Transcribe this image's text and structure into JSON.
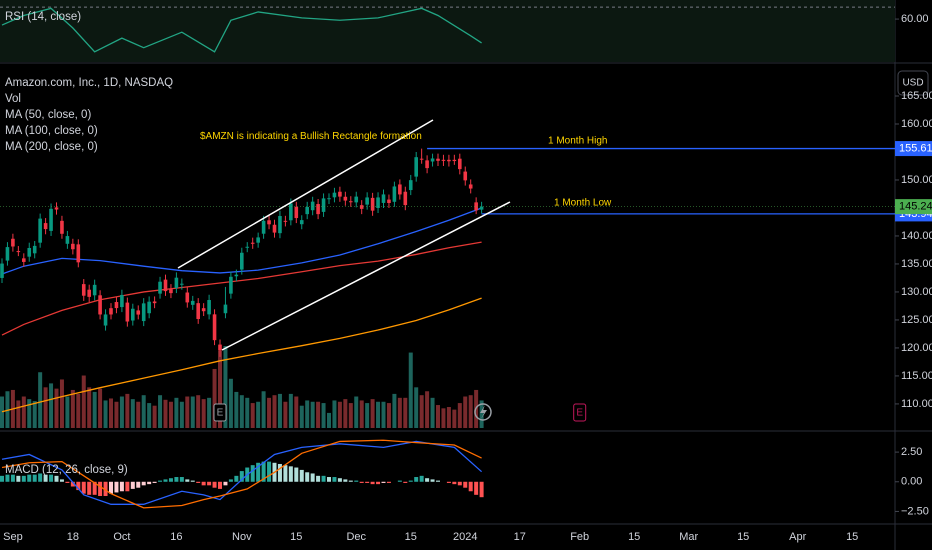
{
  "chart_data": [
    {
      "type": "line",
      "title": "RSI (14, close)",
      "ylim": [
        24,
        76
      ],
      "yticks": [
        {
          "value": 60,
          "label": "60.00"
        }
      ],
      "upper_band": 70,
      "background": "#0c1811",
      "series": [
        {
          "color": "#22a584",
          "x": [
            0,
            4,
            9,
            13,
            17,
            22,
            26,
            33,
            39,
            42,
            47,
            55,
            62,
            69,
            77,
            80,
            86,
            88
          ],
          "values": [
            55,
            63,
            69,
            52.5,
            32.5,
            44,
            36,
            49,
            32.5,
            59,
            66,
            61,
            59,
            61,
            69,
            63,
            46,
            40
          ]
        }
      ]
    },
    {
      "type": "candlestick",
      "title": "Amazon.com, Inc., 1D, NASDAQ",
      "currency": "USD",
      "up_color": "#089981",
      "down_color": "#f23645",
      "ylim": [
        105.7,
        170
      ],
      "yticks": [
        {
          "value": 110,
          "label": "110.00"
        },
        {
          "value": 115,
          "label": "115.00"
        },
        {
          "value": 120,
          "label": "120.00"
        },
        {
          "value": 125,
          "label": "125.00"
        },
        {
          "value": 130,
          "label": "130.00"
        },
        {
          "value": 135,
          "label": "135.00"
        },
        {
          "value": 140,
          "label": "140.00"
        },
        {
          "value": 150,
          "label": "150.00"
        },
        {
          "value": 160,
          "label": "160.00"
        },
        {
          "value": 165,
          "label": "165.00"
        }
      ],
      "open": [
        132.5,
        135.6,
        139.5,
        137.3,
        136.0,
        136.3,
        136.9,
        138.8,
        142.3,
        140.9,
        145.1,
        142.7,
        138.6,
        138.6,
        138.5,
        131.4,
        130.4,
        129.4,
        129.4,
        124.0,
        127.1,
        128.2,
        127.3,
        128.1,
        124.9,
        126.7,
        124.8,
        126.2,
        128.3,
        129.7,
        132.2,
        130.5,
        130.7,
        131.3,
        129.9,
        127.7,
        128.0,
        127.1,
        126.0,
        126.0,
        120.6,
        126.2,
        129.7,
        132.8,
        134.0,
        138.0,
        138.8,
        138.8,
        140.4,
        142.8,
        142.0,
        140.5,
        142.7,
        142.8,
        145.2,
        142.1,
        143.9,
        144.6,
        145.7,
        144.3,
        146.6,
        146.9,
        147.9,
        147.0,
        146.2,
        146.0,
        145.5,
        145.6,
        146.8,
        145.0,
        145.9,
        146.5,
        146.1,
        149.2,
        147.9,
        148.2,
        150.6,
        153.8,
        153.5,
        153.3,
        153.8,
        153.6,
        153.6,
        153.6,
        153.8,
        151.5,
        149.2,
        146.0,
        144.7
      ],
      "high": [
        136.0,
        138.9,
        140.4,
        138.2,
        136.9,
        138.8,
        139.1,
        144.0,
        143.2,
        145.8,
        146.0,
        143.6,
        140.9,
        139.5,
        139.4,
        132.3,
        131.3,
        132.2,
        130.3,
        126.9,
        128.0,
        129.1,
        130.4,
        129.0,
        127.9,
        127.6,
        128.9,
        129.2,
        129.2,
        132.7,
        133.1,
        131.4,
        133.5,
        132.4,
        130.8,
        129.3,
        128.9,
        128.0,
        129.5,
        126.9,
        121.5,
        130.9,
        133.6,
        134.0,
        137.9,
        138.9,
        139.7,
        140.6,
        143.6,
        143.7,
        142.9,
        144.5,
        143.6,
        146.7,
        146.1,
        143.7,
        146.1,
        147.0,
        146.6,
        147.6,
        147.6,
        148.6,
        148.8,
        147.9,
        147.1,
        147.9,
        146.4,
        147.8,
        147.7,
        147.8,
        148.3,
        147.4,
        149.7,
        150.1,
        148.8,
        150.9,
        155.0,
        155.6,
        154.4,
        154.7,
        154.7,
        154.5,
        154.5,
        154.5,
        154.7,
        152.4,
        150.1,
        146.9,
        146.1
      ],
      "low": [
        131.6,
        134.7,
        137.2,
        136.4,
        134.5,
        135.4,
        136.0,
        137.9,
        140.3,
        140.0,
        143.8,
        139.5,
        137.7,
        136.7,
        134.4,
        128.4,
        128.2,
        128.5,
        125.1,
        123.1,
        125.1,
        126.2,
        126.4,
        123.8,
        124.0,
        125.1,
        123.9,
        125.3,
        127.1,
        128.8,
        129.3,
        128.9,
        129.8,
        130.4,
        127.2,
        126.8,
        124.3,
        125.7,
        125.1,
        120.5,
        118.4,
        125.3,
        128.8,
        131.9,
        133.1,
        137.1,
        137.7,
        137.9,
        139.5,
        141.2,
        139.7,
        139.6,
        141.7,
        141.9,
        142.3,
        141.2,
        143.0,
        143.7,
        143.0,
        143.4,
        145.7,
        146.0,
        146.1,
        145.4,
        145.2,
        145.1,
        143.9,
        144.7,
        143.6,
        144.1,
        145.0,
        145.0,
        145.2,
        146.5,
        144.6,
        147.3,
        149.7,
        152.9,
        151.2,
        152.4,
        152.5,
        152.5,
        152.4,
        152.7,
        151.0,
        149.0,
        147.6,
        143.9,
        144.0
      ],
      "close": [
        135.07,
        138.01,
        138.12,
        137.27,
        135.36,
        137.85,
        138.23,
        143.1,
        141.23,
        144.85,
        144.72,
        140.39,
        139.98,
        137.63,
        135.29,
        129.33,
        129.12,
        131.27,
        125.98,
        125.98,
        125.98,
        127.12,
        129.46,
        124.72,
        127.0,
        125.96,
        127.96,
        128.26,
        128.0,
        131.83,
        130.15,
        129.79,
        132.55,
        131.47,
        128.13,
        128.4,
        125.17,
        126.56,
        128.56,
        121.39,
        119.57,
        127.74,
        132.71,
        133.09,
        137.0,
        138.07,
        138.6,
        139.74,
        142.71,
        142.08,
        140.6,
        143.56,
        142.59,
        145.8,
        143.2,
        142.83,
        145.18,
        146.13,
        143.9,
        146.71,
        146.74,
        147.73,
        147.03,
        146.32,
        146.09,
        147.03,
        144.84,
        146.88,
        144.52,
        146.88,
        147.42,
        145.89,
        148.84,
        147.42,
        145.52,
        149.97,
        154.07,
        153.79,
        152.12,
        153.84,
        153.42,
        153.41,
        153.34,
        153.38,
        151.94,
        149.93,
        148.47,
        144.57,
        145.24
      ],
      "last_price_color": "#4caf50",
      "volume": {
        "title": "Vol",
        "up_color": "#1d645c",
        "down_color": "#7a2a2d",
        "values": [
          48,
          56,
          58,
          42,
          48,
          44,
          41,
          85,
          62,
          68,
          60,
          74,
          48,
          58,
          52,
          80,
          62,
          55,
          60,
          42,
          45,
          40,
          48,
          52,
          44,
          40,
          50,
          38,
          34,
          50,
          43,
          40,
          46,
          40,
          48,
          48,
          50,
          44,
          46,
          90,
          118,
          125,
          75,
          55,
          50,
          46,
          38,
          40,
          56,
          46,
          50,
          52,
          40,
          52,
          48,
          34,
          42,
          40,
          40,
          38,
          23,
          42,
          40,
          44,
          38,
          48,
          42,
          38,
          44,
          40,
          40,
          38,
          52,
          46,
          46,
          115,
          62,
          50,
          56,
          46,
          35,
          30,
          32,
          28,
          38,
          48,
          50,
          58,
          42
        ]
      },
      "moving_averages": [
        {
          "name": "MA (50, close, 0)",
          "color": "#2962ff",
          "x": [
            0,
            4,
            11,
            18,
            26,
            33,
            40,
            47,
            55,
            62,
            69,
            76,
            82,
            88
          ],
          "values": [
            133.2,
            134.6,
            136.0,
            135.6,
            134.6,
            133.8,
            133.4,
            133.9,
            135.2,
            136.6,
            138.6,
            140.8,
            142.8,
            145.0
          ]
        },
        {
          "name": "MA (100, close, 0)",
          "color": "#e53935",
          "x": [
            0,
            4,
            11,
            18,
            26,
            33,
            40,
            47,
            55,
            62,
            69,
            76,
            82,
            88
          ],
          "values": [
            122.3,
            124.2,
            126.7,
            128.6,
            130.0,
            130.8,
            131.6,
            132.4,
            133.6,
            134.7,
            135.5,
            136.7,
            137.9,
            138.9
          ]
        },
        {
          "name": "MA (200, close, 0)",
          "color": "#ff9800",
          "x": [
            0,
            4,
            11,
            18,
            26,
            33,
            40,
            47,
            55,
            62,
            69,
            76,
            82,
            88
          ],
          "values": [
            108.6,
            109.6,
            111.3,
            112.9,
            114.6,
            116.1,
            117.7,
            119.0,
            120.4,
            121.7,
            123.2,
            124.9,
            126.8,
            128.9
          ]
        }
      ],
      "reference_lines": [
        {
          "value": 155.61,
          "label": "1 Month High",
          "color": "#2962ff",
          "x_start": 78
        },
        {
          "value": 143.94,
          "label": "1 Month Low",
          "color": "#2962ff",
          "x_start": 88
        }
      ],
      "annotation": "$AMZN is indicating a Bullish Rectangle formation",
      "events": [
        {
          "x": 40,
          "label": "E",
          "color": "#9aa0a6"
        },
        {
          "x": 106,
          "label": "E",
          "color": "#c2185b"
        }
      ]
    },
    {
      "type": "macd",
      "title": "MACD (12, 26, close, 9)",
      "ylim": [
        -3.39,
        4.11
      ],
      "yticks": [
        {
          "value": 2.5,
          "label": "2.50"
        },
        {
          "value": 0,
          "label": "0.00"
        },
        {
          "value": -2.5,
          "label": "−2.50"
        }
      ],
      "histogram": {
        "colors": [
          "#26a69a",
          "#b2dfdb",
          "#ff5252",
          "#ffcdd2"
        ],
        "values": [
          0.5,
          0.6,
          0.6,
          0.5,
          0.5,
          0.6,
          0.6,
          0.7,
          0.6,
          0.6,
          0.5,
          0.2,
          -0.1,
          -0.4,
          -0.7,
          -1.0,
          -1.1,
          -1.1,
          -1.2,
          -1.2,
          -1.0,
          -0.9,
          -0.8,
          -0.8,
          -0.6,
          -0.5,
          -0.3,
          -0.2,
          -0.1,
          0.1,
          0.2,
          0.3,
          0.4,
          0.4,
          0.2,
          0.1,
          -0.1,
          -0.3,
          -0.3,
          -0.5,
          -0.6,
          -0.3,
          0.2,
          0.5,
          0.9,
          1.2,
          1.4,
          1.6,
          1.7,
          1.7,
          1.6,
          1.5,
          1.4,
          1.3,
          1.2,
          1.0,
          0.8,
          0.7,
          0.5,
          0.5,
          0.4,
          0.4,
          0.3,
          0.2,
          0.1,
          0.1,
          -0.1,
          -0.1,
          -0.2,
          -0.2,
          -0.1,
          -0.1,
          0.0,
          0.1,
          -0.1,
          0.1,
          0.4,
          0.5,
          0.3,
          0.2,
          0.1,
          0.0,
          -0.1,
          -0.2,
          -0.3,
          -0.5,
          -0.8,
          -1.1,
          -1.3
        ]
      },
      "series": [
        {
          "color": "#2962ff",
          "x": [
            0,
            5,
            11,
            15,
            20,
            26,
            33,
            37,
            40,
            45,
            50,
            55,
            62,
            70,
            76,
            83,
            88
          ],
          "values": [
            1.9,
            2.3,
            1.0,
            -1.1,
            -1.9,
            -1.9,
            -0.8,
            -1.1,
            -1.5,
            0.6,
            2.3,
            2.9,
            3.2,
            2.9,
            3.4,
            2.9,
            0.85
          ]
        },
        {
          "color": "#ff6d00",
          "x": [
            0,
            5,
            11,
            15,
            20,
            26,
            33,
            37,
            40,
            45,
            50,
            55,
            62,
            70,
            76,
            83,
            88
          ],
          "values": [
            1.2,
            1.6,
            1.7,
            0.5,
            -1.0,
            -2.2,
            -2.0,
            -1.5,
            -1.2,
            -0.6,
            0.8,
            2.4,
            3.4,
            3.5,
            3.3,
            3.1,
            2.0
          ]
        }
      ],
      "xticks": [
        {
          "value": 2,
          "label": "Sep"
        },
        {
          "value": 13,
          "label": "18"
        },
        {
          "value": 22,
          "label": "Oct"
        },
        {
          "value": 32,
          "label": "16"
        },
        {
          "value": 44,
          "label": "Nov"
        },
        {
          "value": 54,
          "label": "15"
        },
        {
          "value": 65,
          "label": "Dec"
        },
        {
          "value": 75,
          "label": "15"
        },
        {
          "value": 85,
          "label": "2024"
        },
        {
          "value": 95,
          "label": "17"
        },
        {
          "value": 106,
          "label": "Feb"
        },
        {
          "value": 116,
          "label": "15"
        },
        {
          "value": 126,
          "label": "Mar"
        },
        {
          "value": 136,
          "label": "15"
        },
        {
          "value": 146,
          "label": "Apr"
        },
        {
          "value": 156,
          "label": "15"
        }
      ]
    }
  ]
}
